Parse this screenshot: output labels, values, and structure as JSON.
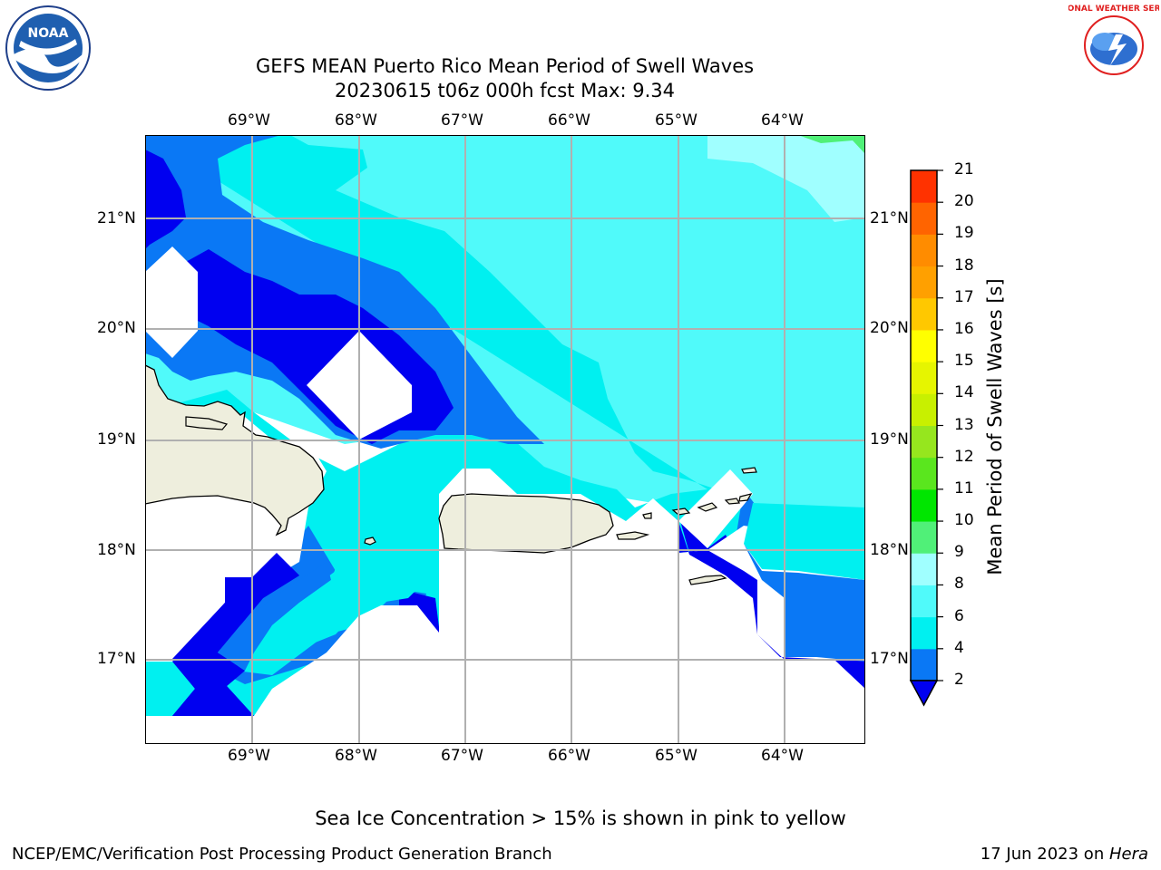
{
  "header": {
    "title_line1": "GEFS MEAN Puerto Rico Mean Period of Swell Waves",
    "title_line2": "20230615 t06z 000h fcst   Max: 9.34"
  },
  "logos": {
    "left": "NOAA",
    "right": "NATIONAL WEATHER SERVICE"
  },
  "map": {
    "lon_labels": [
      "69°W",
      "68°W",
      "67°W",
      "66°W",
      "65°W",
      "64°W"
    ],
    "lat_labels": [
      "21°N",
      "20°N",
      "19°N",
      "18°N",
      "17°N"
    ],
    "land_color": "#eeeedd",
    "grid_color": "#b0b0b0"
  },
  "colorbar": {
    "label": "Mean Period of Swell Waves [s]",
    "ticks": [
      "2",
      "4",
      "6",
      "8",
      "9",
      "10",
      "11",
      "12",
      "13",
      "14",
      "15",
      "16",
      "17",
      "18",
      "19",
      "20",
      "21"
    ],
    "colors": [
      "#0000f0",
      "#0a78f5",
      "#00f0f0",
      "#50fafa",
      "#a0ffff",
      "#50f078",
      "#00e600",
      "#5ae61e",
      "#96e61e",
      "#c8f000",
      "#e6f500",
      "#ffff00",
      "#ffc800",
      "#ffa000",
      "#ff8c00",
      "#ff6400",
      "#ff3200",
      "#ff0000"
    ]
  },
  "caption": "Sea Ice Concentration > 15% is shown in pink to yellow",
  "footer": {
    "left": "NCEP/EMC/Verification Post Processing Product Generation Branch",
    "right_prefix": "17 Jun 2023 on ",
    "right_host": "Hera"
  }
}
